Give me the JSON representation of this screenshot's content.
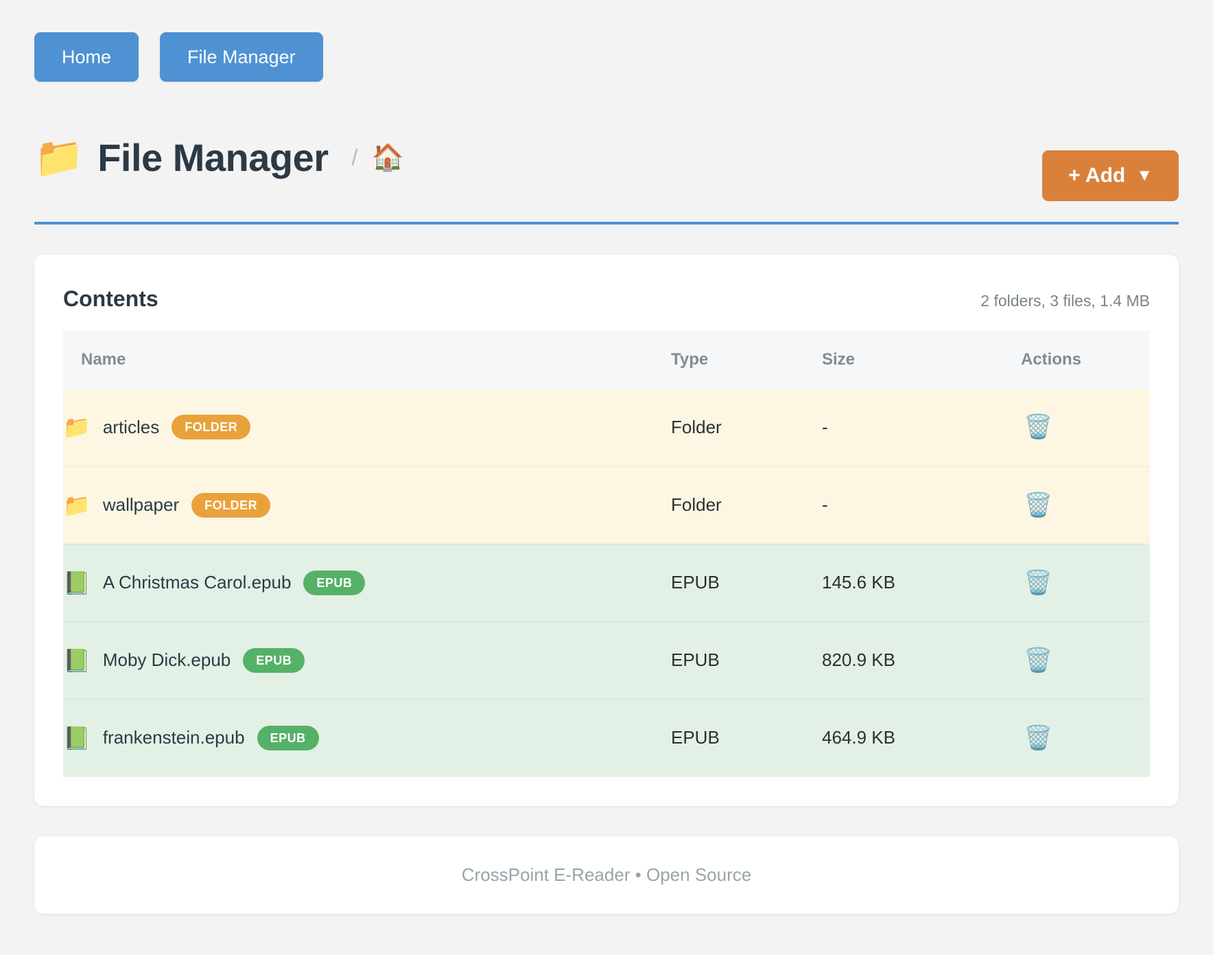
{
  "nav": {
    "home_label": "Home",
    "file_manager_label": "File Manager"
  },
  "header": {
    "icon": "📁",
    "title": "File Manager",
    "breadcrumb_separator": "/",
    "breadcrumb_home_icon": "🏠",
    "add_button_label": "+ Add",
    "add_button_caret": "▼"
  },
  "contents": {
    "title": "Contents",
    "summary": "2 folders, 3 files, 1.4 MB",
    "columns": {
      "name": "Name",
      "type": "Type",
      "size": "Size",
      "actions": "Actions"
    },
    "delete_icon": "🗑️",
    "rows": [
      {
        "icon": "📁",
        "name": "articles",
        "badge": "FOLDER",
        "kind": "folder",
        "type": "Folder",
        "size": "-"
      },
      {
        "icon": "📁",
        "name": "wallpaper",
        "badge": "FOLDER",
        "kind": "folder",
        "type": "Folder",
        "size": "-"
      },
      {
        "icon": "📗",
        "name": "A Christmas Carol.epub",
        "badge": "EPUB",
        "kind": "epub",
        "type": "EPUB",
        "size": "145.6 KB"
      },
      {
        "icon": "📗",
        "name": "Moby Dick.epub",
        "badge": "EPUB",
        "kind": "epub",
        "type": "EPUB",
        "size": "820.9 KB"
      },
      {
        "icon": "📗",
        "name": "frankenstein.epub",
        "badge": "EPUB",
        "kind": "epub",
        "type": "EPUB",
        "size": "464.9 KB"
      }
    ]
  },
  "footer": {
    "text": "CrossPoint E-Reader • Open Source"
  },
  "colors": {
    "accent_blue": "#4e92d3",
    "rule_blue": "#4a91d9",
    "accent_orange": "#d9813b",
    "badge_orange": "#e9a23b",
    "badge_green": "#55b168",
    "row_folder_bg": "#fdf6e3",
    "row_epub_bg": "#e3f0e5",
    "page_bg": "#f3f3f3"
  }
}
